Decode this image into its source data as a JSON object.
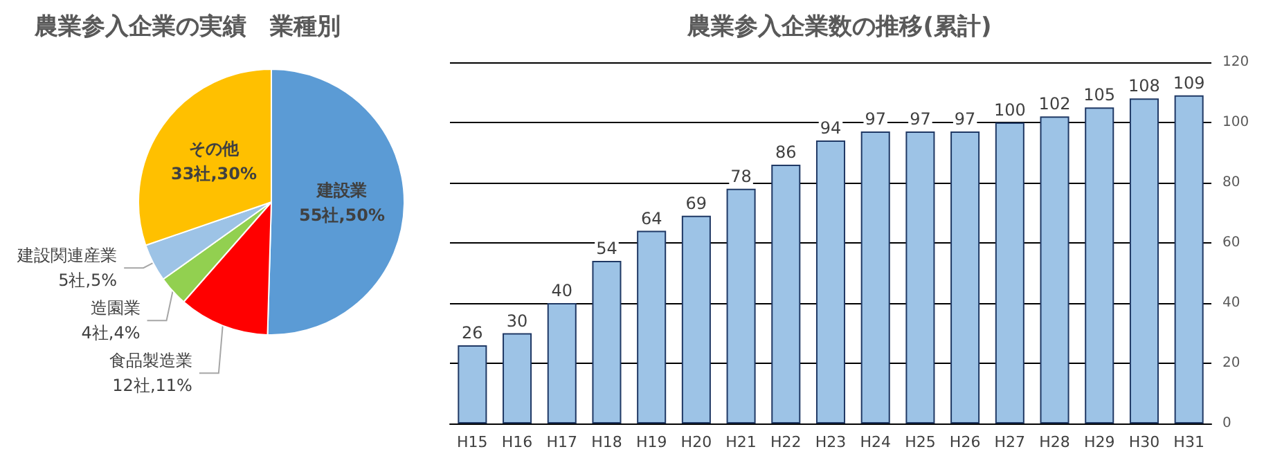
{
  "chart_data": [
    {
      "type": "pie",
      "title": "農業参入企業の実績　業種別",
      "categories": [
        "建設業",
        "食品製造業",
        "造園業",
        "建設関連産業",
        "その他"
      ],
      "values": [
        55,
        12,
        4,
        5,
        33
      ],
      "value_labels": [
        "55社,50%",
        "12社,11%",
        "4社,4%",
        "5社,5%",
        "33社,30%"
      ],
      "colors": [
        "#5b9bd5",
        "#ff0000",
        "#92d050",
        "#9dc3e6",
        "#ffc000"
      ],
      "legend": false
    },
    {
      "type": "bar",
      "title": "農業参入企業数の推移(累計)",
      "categories": [
        "H15",
        "H16",
        "H17",
        "H18",
        "H19",
        "H20",
        "H21",
        "H22",
        "H23",
        "H24",
        "H25",
        "H26",
        "H27",
        "H28",
        "H29",
        "H30",
        "H31"
      ],
      "values": [
        26,
        30,
        40,
        54,
        64,
        69,
        78,
        86,
        94,
        97,
        97,
        97,
        100,
        102,
        105,
        108,
        109
      ],
      "color": "#9dc3e6",
      "ylim": [
        0,
        120
      ],
      "yticks": [
        0,
        20,
        40,
        60,
        80,
        100,
        120
      ],
      "grid": "y",
      "data_labels": true,
      "legend": false
    }
  ]
}
